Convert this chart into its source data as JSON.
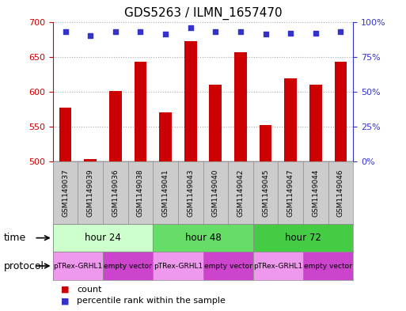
{
  "title": "GDS5263 / ILMN_1657470",
  "samples": [
    "GSM1149037",
    "GSM1149039",
    "GSM1149036",
    "GSM1149038",
    "GSM1149041",
    "GSM1149043",
    "GSM1149040",
    "GSM1149042",
    "GSM1149045",
    "GSM1149047",
    "GSM1149044",
    "GSM1149046"
  ],
  "counts": [
    577,
    504,
    601,
    643,
    570,
    672,
    610,
    657,
    552,
    619,
    610,
    643
  ],
  "percentiles": [
    93,
    90,
    93,
    93,
    91,
    96,
    93,
    93,
    91,
    92,
    92,
    93
  ],
  "ylim_left": [
    500,
    700
  ],
  "ylim_right": [
    0,
    100
  ],
  "yticks_left": [
    500,
    550,
    600,
    650,
    700
  ],
  "yticks_right": [
    0,
    25,
    50,
    75,
    100
  ],
  "bar_color": "#cc0000",
  "dot_color": "#3333cc",
  "bar_bottom": 500,
  "time_groups": [
    {
      "label": "hour 24",
      "start": 0,
      "end": 4,
      "color": "#ccffcc"
    },
    {
      "label": "hour 48",
      "start": 4,
      "end": 8,
      "color": "#66dd66"
    },
    {
      "label": "hour 72",
      "start": 8,
      "end": 12,
      "color": "#44cc44"
    }
  ],
  "protocol_groups": [
    {
      "label": "pTRex-GRHL1",
      "start": 0,
      "end": 2,
      "color": "#ee99ee"
    },
    {
      "label": "empty vector",
      "start": 2,
      "end": 4,
      "color": "#cc44cc"
    },
    {
      "label": "pTRex-GRHL1",
      "start": 4,
      "end": 6,
      "color": "#ee99ee"
    },
    {
      "label": "empty vector",
      "start": 6,
      "end": 8,
      "color": "#cc44cc"
    },
    {
      "label": "pTRex-GRHL1",
      "start": 8,
      "end": 10,
      "color": "#ee99ee"
    },
    {
      "label": "empty vector",
      "start": 10,
      "end": 12,
      "color": "#cc44cc"
    }
  ],
  "legend_count_color": "#cc0000",
  "legend_dot_color": "#3333cc",
  "background_color": "#ffffff",
  "axis_label_color_left": "#cc0000",
  "axis_label_color_right": "#3333cc",
  "sample_box_color": "#cccccc",
  "title_fontsize": 11
}
